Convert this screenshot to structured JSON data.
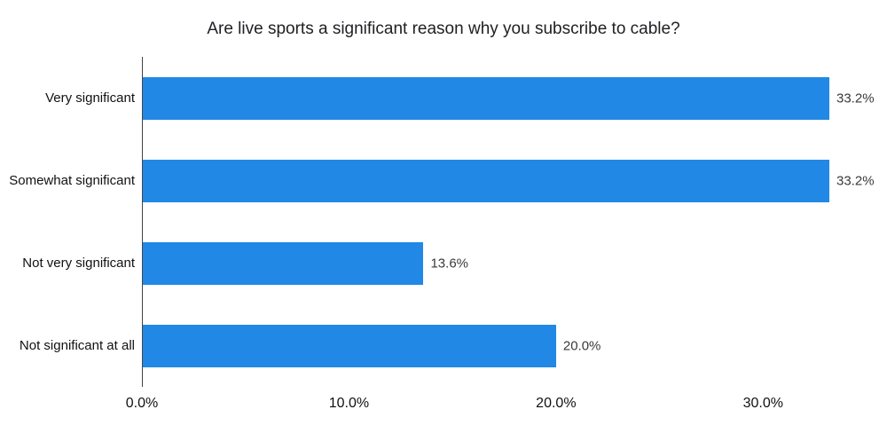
{
  "chart_data": {
    "type": "bar",
    "orientation": "horizontal",
    "title": "Are live sports a significant reason why you subscribe to cable?",
    "categories": [
      "Very significant",
      "Somewhat significant",
      "Not very significant",
      "Not significant at all"
    ],
    "values": [
      33.2,
      33.2,
      13.6,
      20.0
    ],
    "value_labels": [
      "33.2%",
      "33.2%",
      "13.6%",
      "20.0%"
    ],
    "x_ticks": [
      0,
      10,
      20,
      30
    ],
    "x_tick_labels": [
      "0.0%",
      "10.0%",
      "20.0%",
      "30.0%"
    ],
    "axis_max": 33.2,
    "xlabel": "",
    "ylabel": "",
    "bar_color": "#2188e6",
    "axis_line_color": "#444444",
    "grid": false,
    "legend": false
  }
}
